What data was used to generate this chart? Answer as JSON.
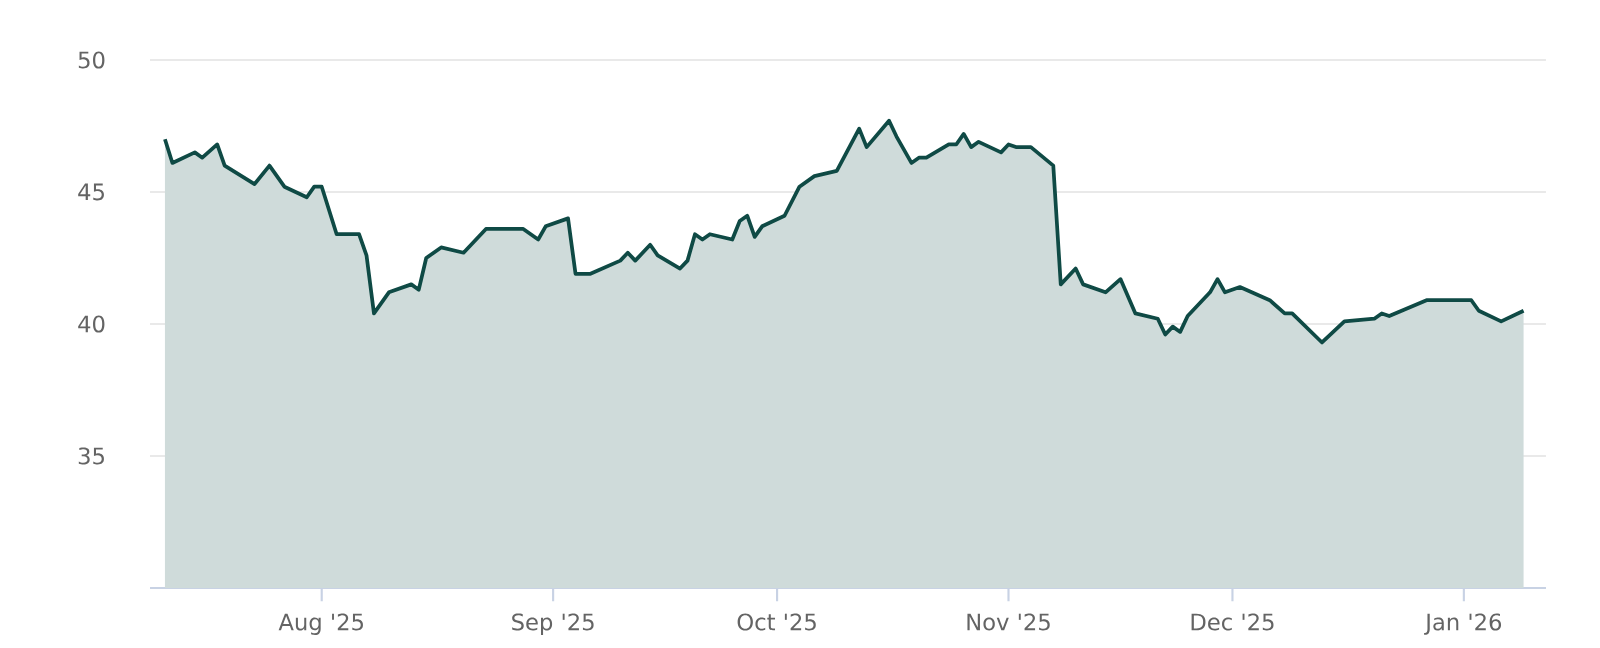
{
  "chart_data": {
    "type": "area",
    "x": [
      "2025-07-11",
      "2025-07-12",
      "2025-07-15",
      "2025-07-16",
      "2025-07-18",
      "2025-07-19",
      "2025-07-23",
      "2025-07-25",
      "2025-07-27",
      "2025-07-30",
      "2025-07-31",
      "2025-08-01",
      "2025-08-03",
      "2025-08-06",
      "2025-08-07",
      "2025-08-08",
      "2025-08-10",
      "2025-08-13",
      "2025-08-14",
      "2025-08-15",
      "2025-08-17",
      "2025-08-20",
      "2025-08-23",
      "2025-08-28",
      "2025-08-30",
      "2025-08-31",
      "2025-09-03",
      "2025-09-04",
      "2025-09-06",
      "2025-09-10",
      "2025-09-11",
      "2025-09-12",
      "2025-09-14",
      "2025-09-15",
      "2025-09-18",
      "2025-09-19",
      "2025-09-20",
      "2025-09-21",
      "2025-09-22",
      "2025-09-25",
      "2025-09-26",
      "2025-09-27",
      "2025-09-28",
      "2025-09-29",
      "2025-10-02",
      "2025-10-04",
      "2025-10-06",
      "2025-10-09",
      "2025-10-12",
      "2025-10-13",
      "2025-10-16",
      "2025-10-17",
      "2025-10-19",
      "2025-10-20",
      "2025-10-21",
      "2025-10-24",
      "2025-10-25",
      "2025-10-26",
      "2025-10-27",
      "2025-10-28",
      "2025-10-31",
      "2025-11-01",
      "2025-11-02",
      "2025-11-04",
      "2025-11-07",
      "2025-11-08",
      "2025-11-10",
      "2025-11-11",
      "2025-11-14",
      "2025-11-16",
      "2025-11-18",
      "2025-11-21",
      "2025-11-22",
      "2025-11-23",
      "2025-11-24",
      "2025-11-25",
      "2025-11-28",
      "2025-11-29",
      "2025-11-30",
      "2025-12-02",
      "2025-12-06",
      "2025-12-08",
      "2025-12-09",
      "2025-12-13",
      "2025-12-16",
      "2025-12-20",
      "2025-12-21",
      "2025-12-22",
      "2025-12-27",
      "2026-01-02",
      "2026-01-03",
      "2026-01-06",
      "2026-01-09"
    ],
    "series": [
      {
        "color": "#0f4a45",
        "values": [
          47.0,
          46.1,
          46.5,
          46.3,
          46.8,
          46.0,
          45.3,
          46.0,
          45.2,
          44.8,
          45.2,
          45.2,
          43.4,
          43.4,
          42.6,
          40.4,
          41.2,
          41.5,
          41.3,
          42.5,
          42.9,
          42.7,
          43.6,
          43.6,
          43.2,
          43.7,
          44.0,
          41.9,
          41.9,
          42.4,
          42.7,
          42.4,
          43.0,
          42.6,
          42.1,
          42.4,
          43.4,
          43.2,
          43.4,
          43.2,
          43.9,
          44.1,
          43.3,
          43.7,
          44.1,
          45.2,
          45.6,
          45.8,
          47.4,
          46.7,
          47.7,
          47.1,
          46.1,
          46.3,
          46.3,
          46.8,
          46.8,
          47.2,
          46.7,
          46.9,
          46.5,
          46.8,
          46.7,
          46.7,
          46.0,
          41.5,
          42.1,
          41.5,
          41.2,
          41.7,
          40.4,
          40.2,
          39.6,
          39.9,
          39.7,
          40.3,
          41.2,
          41.7,
          41.2,
          41.4,
          40.9,
          40.4,
          40.4,
          39.3,
          40.1,
          40.2,
          40.4,
          40.3,
          40.9,
          40.9,
          40.5,
          40.1,
          40.5
        ]
      }
    ],
    "xlim": [
      "2025-07-09",
      "2026-01-12"
    ],
    "xticks": [
      {
        "value": "2025-08-01",
        "label": "Aug '25"
      },
      {
        "value": "2025-09-01",
        "label": "Sep '25"
      },
      {
        "value": "2025-10-01",
        "label": "Oct '25"
      },
      {
        "value": "2025-11-01",
        "label": "Nov '25"
      },
      {
        "value": "2025-12-01",
        "label": "Dec '25"
      },
      {
        "value": "2026-01-01",
        "label": "Jan '26"
      }
    ],
    "ylim": [
      30,
      50
    ],
    "yticks": [
      35,
      40,
      45,
      50
    ],
    "grid": "y",
    "line_style": "solid"
  }
}
